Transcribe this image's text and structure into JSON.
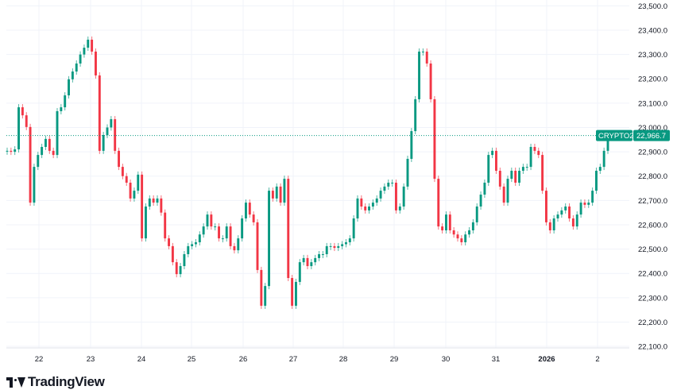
{
  "chart_data": {
    "type": "candlestick",
    "symbol": "CRYPTO20",
    "last_price": "22,966.7",
    "ylim": [
      22050,
      23520
    ],
    "y_ticks": [
      23500,
      23400,
      23300,
      23200,
      23100,
      23000,
      22900,
      22800,
      22700,
      22600,
      22500,
      22400,
      22300,
      22200,
      22100
    ],
    "y_tick_labels": [
      "23,500.0",
      "23,400.0",
      "23,300.0",
      "23,200.0",
      "23,100.0",
      "23,000.0",
      "22,900.0",
      "22,800.0",
      "22,700.0",
      "22,600.0",
      "22,500.0",
      "22,400.0",
      "22,300.0",
      "22,200.0",
      "22,100.0"
    ],
    "x_tick_labels": [
      "22",
      "23",
      "24",
      "25",
      "26",
      "27",
      "28",
      "29",
      "30",
      "31",
      "2026",
      "2"
    ],
    "grid": true,
    "colors": {
      "up": "#089981",
      "down": "#f23645",
      "grid": "#f0f3fa",
      "text": "#131722"
    },
    "closes": [
      22904,
      22900,
      22910,
      23083,
      23050,
      23002,
      22691,
      22838,
      22887,
      22920,
      22953,
      22904,
      22887,
      23067,
      23083,
      23132,
      23198,
      23230,
      23263,
      23300,
      23328,
      23361,
      23312,
      23214,
      22904,
      22969,
      23000,
      23034,
      22904,
      22838,
      22800,
      22773,
      22708,
      22740,
      22806,
      22544,
      22675,
      22708,
      22691,
      22708,
      22650,
      22544,
      22512,
      22446,
      22397,
      22430,
      22479,
      22512,
      22520,
      22528,
      22560,
      22593,
      22642,
      22593,
      22593,
      22544,
      22544,
      22593,
      22512,
      22495,
      22544,
      22626,
      22691,
      22642,
      22610,
      22414,
      22267,
      22348,
      22740,
      22708,
      22757,
      22691,
      22789,
      22381,
      22267,
      22365,
      22446,
      22463,
      22430,
      22446,
      22463,
      22479,
      22479,
      22512,
      22512,
      22505,
      22512,
      22520,
      22528,
      22544,
      22626,
      22708,
      22675,
      22659,
      22675,
      22691,
      22708,
      22740,
      22757,
      22773,
      22773,
      22659,
      22675,
      22757,
      22871,
      22985,
      23116,
      23312,
      23312,
      23263,
      23116,
      22789,
      22593,
      22577,
      22642,
      22577,
      22560,
      22544,
      22528,
      22560,
      22577,
      22610,
      22675,
      22724,
      22773,
      22887,
      22904,
      22822,
      22757,
      22691,
      22789,
      22822,
      22773,
      22822,
      22838,
      22838,
      22920,
      22904,
      22887,
      22740,
      22610,
      22577,
      22626,
      22642,
      22659,
      22675,
      22626,
      22593,
      22642,
      22691,
      22682,
      22691,
      22740,
      22822,
      22838,
      22904,
      22966.7
    ]
  },
  "branding": {
    "logo_text": "TradingView"
  }
}
